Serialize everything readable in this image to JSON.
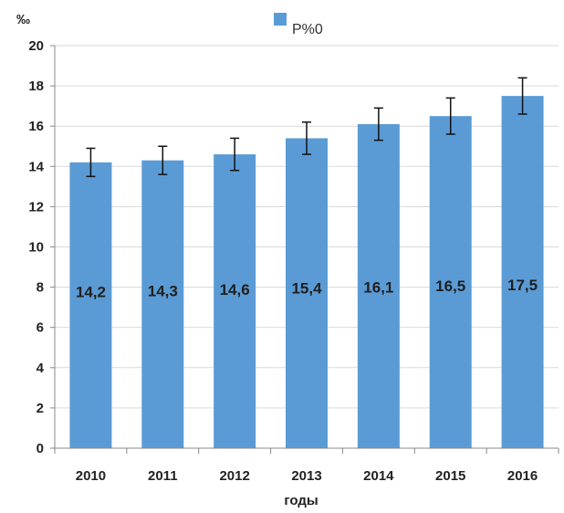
{
  "chart_data": {
    "type": "bar",
    "categories": [
      "2010",
      "2011",
      "2012",
      "2013",
      "2014",
      "2015",
      "2016"
    ],
    "series": [
      {
        "name": "P%0",
        "values": [
          14.2,
          14.3,
          14.6,
          15.4,
          16.1,
          16.5,
          17.5
        ],
        "error": [
          0.7,
          0.7,
          0.8,
          0.8,
          0.8,
          0.9,
          0.9
        ],
        "data_labels": [
          "14,2",
          "14,3",
          "14,6",
          "15,4",
          "16,1",
          "16,5",
          "17,5"
        ],
        "color": "#5b9bd5"
      }
    ],
    "title": "",
    "xlabel": "годы",
    "ylabel": "‰",
    "ylim": [
      0,
      20
    ],
    "yticks": [
      0,
      2,
      4,
      6,
      8,
      10,
      12,
      14,
      16,
      18,
      20
    ],
    "grid": true,
    "legend": "top-center",
    "data_label_value": 7.5
  }
}
